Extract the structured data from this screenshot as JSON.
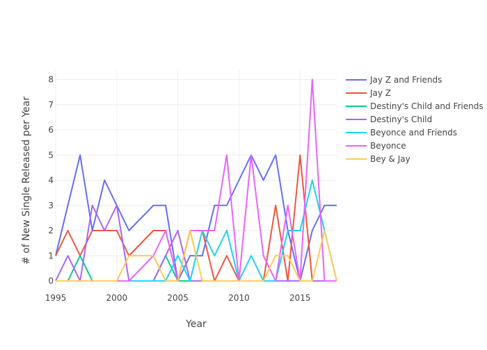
{
  "chart_data": {
    "type": "line",
    "xlabel": "Year",
    "ylabel": "# of New Single Released per Year",
    "xlim": [
      1995,
      2018
    ],
    "ylim": [
      -0.4,
      8.4
    ],
    "x_ticks": [
      1995,
      2000,
      2005,
      2010,
      2015
    ],
    "y_ticks": [
      0,
      1,
      2,
      3,
      4,
      5,
      6,
      7,
      8
    ],
    "grid": true,
    "legend_position": "right",
    "x": [
      1995,
      1996,
      1997,
      1998,
      1999,
      2000,
      2001,
      2002,
      2003,
      2004,
      2005,
      2006,
      2007,
      2008,
      2009,
      2010,
      2011,
      2012,
      2013,
      2014,
      2015,
      2016,
      2017,
      2018
    ],
    "series": [
      {
        "name": "Jay Z and Friends",
        "color": "#636efa",
        "values": [
          1,
          3,
          5,
          2,
          4,
          3,
          2,
          2.5,
          3,
          3,
          0,
          1,
          1,
          3,
          3,
          4,
          5,
          4,
          5,
          2,
          0,
          2,
          3,
          3
        ]
      },
      {
        "name": "Jay Z",
        "color": "#EF553B",
        "values": [
          1,
          2,
          1,
          2,
          2,
          2,
          1,
          1.5,
          2,
          2,
          0,
          2,
          2,
          0,
          1,
          0,
          0,
          0,
          3,
          0,
          5,
          0,
          0,
          0
        ]
      },
      {
        "name": "Destiny's Child and Friends",
        "color": "#00cc96",
        "values": [
          0,
          0,
          1,
          0,
          0,
          0,
          0,
          0,
          0,
          1,
          0,
          0,
          0,
          0,
          0,
          0,
          0,
          0,
          0,
          0,
          0,
          0,
          0,
          0
        ]
      },
      {
        "name": "Destiny's Child",
        "color": "#ab63fa",
        "values": [
          0,
          1,
          0,
          3,
          2,
          3,
          0,
          0,
          0,
          1,
          2,
          0,
          0,
          0,
          0,
          0,
          0,
          0,
          0,
          0,
          0,
          0,
          0,
          0
        ]
      },
      {
        "name": "Beyonce and Friends",
        "color": "#19d3f3",
        "values": [
          0,
          0,
          0,
          0,
          0,
          0,
          0,
          0,
          0,
          0,
          1,
          0,
          2,
          1,
          2,
          0,
          1,
          0,
          0,
          2,
          2,
          4,
          2,
          0
        ]
      },
      {
        "name": "Beyonce",
        "color": "#e763fa",
        "values": [
          0,
          0,
          0,
          0,
          0,
          0,
          0,
          0.5,
          1,
          2,
          0,
          2,
          2,
          2,
          5,
          0,
          5,
          1,
          0,
          3,
          0,
          8,
          0,
          0
        ]
      },
      {
        "name": "Bey & Jay",
        "color": "#FECB52",
        "values": [
          0,
          0,
          0,
          0,
          0,
          0,
          1,
          1,
          1,
          0,
          0,
          2,
          0,
          0,
          0,
          0,
          0,
          0,
          1,
          1,
          0,
          0,
          2,
          0
        ]
      }
    ]
  }
}
